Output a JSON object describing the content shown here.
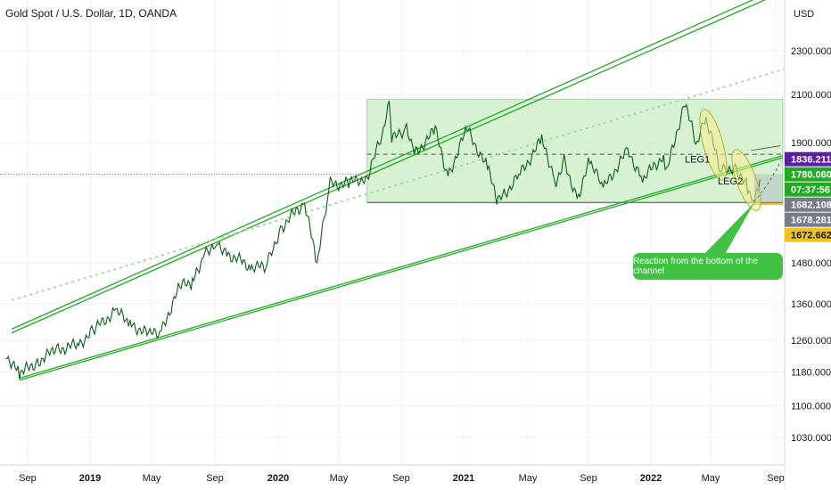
{
  "header": {
    "title": "Gold Spot / U.S. Dollar, 1D, OANDA",
    "currency": "USD"
  },
  "chart_data": {
    "type": "line",
    "y_axis": {
      "ticks": [
        "2300.000",
        "2100.000",
        "1900.000",
        "1480.000",
        "1360.000",
        "1260.000",
        "1180.000",
        "1100.000",
        "1030.000"
      ],
      "tick_values": [
        2300,
        2100,
        1900,
        1480,
        1360,
        1260,
        1180,
        1100,
        1030
      ],
      "scale": "log"
    },
    "x_axis": {
      "ticks": [
        "Sep",
        "2019",
        "May",
        "Sep",
        "2020",
        "May",
        "Sep",
        "2021",
        "May",
        "Sep",
        "2022",
        "May",
        "Sep"
      ],
      "bold": [
        false,
        true,
        false,
        false,
        true,
        false,
        false,
        true,
        false,
        false,
        true,
        false,
        false
      ]
    },
    "price_tags": [
      {
        "text": "1836.211",
        "value": 1836.211,
        "color": "#5b1fa6"
      },
      {
        "text": "1780.060",
        "value": 1780.06,
        "color": "#22ab22"
      },
      {
        "text": "07:37:56",
        "value": 1763,
        "color": "#22ab22"
      },
      {
        "text": "1682.108",
        "value": 1682.108,
        "color": "#787b86"
      },
      {
        "text": "1678.281",
        "value": 1678.281,
        "color": "#787b86"
      },
      {
        "text": "1672.662",
        "value": 1672.662,
        "color": "#f0c419"
      }
    ],
    "series": [
      {
        "values": [
          [
            "2018-07-20",
            1225
          ],
          [
            "2018-08-16",
            1175
          ],
          [
            "2018-09-20",
            1205
          ],
          [
            "2018-10-25",
            1235
          ],
          [
            "2018-12-10",
            1250
          ],
          [
            "2019-01-10",
            1290
          ],
          [
            "2019-02-20",
            1340
          ],
          [
            "2019-03-20",
            1305
          ],
          [
            "2019-04-25",
            1275
          ],
          [
            "2019-05-20",
            1282
          ],
          [
            "2019-06-25",
            1410
          ],
          [
            "2019-07-20",
            1420
          ],
          [
            "2019-08-10",
            1500
          ],
          [
            "2019-09-05",
            1550
          ],
          [
            "2019-09-25",
            1510
          ],
          [
            "2019-11-10",
            1470
          ],
          [
            "2019-12-10",
            1465
          ],
          [
            "2020-01-08",
            1590
          ],
          [
            "2020-02-24",
            1680
          ],
          [
            "2020-03-19",
            1470
          ],
          [
            "2020-04-14",
            1745
          ],
          [
            "2020-05-20",
            1745
          ],
          [
            "2020-06-25",
            1770
          ],
          [
            "2020-07-27",
            1940
          ],
          [
            "2020-08-07",
            2075
          ],
          [
            "2020-08-12",
            1910
          ],
          [
            "2020-09-10",
            1960
          ],
          [
            "2020-09-28",
            1860
          ],
          [
            "2020-11-05",
            1950
          ],
          [
            "2020-11-30",
            1770
          ],
          [
            "2021-01-06",
            1955
          ],
          [
            "2021-02-15",
            1800
          ],
          [
            "2021-03-08",
            1680
          ],
          [
            "2021-04-20",
            1780
          ],
          [
            "2021-06-01",
            1910
          ],
          [
            "2021-06-29",
            1755
          ],
          [
            "2021-07-15",
            1830
          ],
          [
            "2021-08-09",
            1690
          ],
          [
            "2021-09-03",
            1830
          ],
          [
            "2021-09-29",
            1725
          ],
          [
            "2021-11-16",
            1870
          ],
          [
            "2021-12-15",
            1760
          ],
          [
            "2022-01-25",
            1850
          ],
          [
            "2022-01-31",
            1785
          ],
          [
            "2022-03-08",
            2070
          ],
          [
            "2022-03-29",
            1890
          ],
          [
            "2022-04-18",
            1998
          ],
          [
            "2022-05-16",
            1790
          ],
          [
            "2022-06-14",
            1810
          ],
          [
            "2022-07-08",
            1730
          ],
          [
            "2022-07-21",
            1680
          ],
          [
            "2022-08-01",
            1760
          ]
        ]
      }
    ],
    "channel": {
      "upper_line_1": [
        [
          "2018-08-01",
          1290
        ],
        [
          "2022-10-10",
          2660
        ]
      ],
      "upper_line_2": [
        [
          "2018-08-01",
          1280
        ],
        [
          "2022-10-10",
          2630
        ]
      ],
      "lower_line_1": [
        [
          "2018-08-16",
          1165
        ],
        [
          "2022-09-15",
          1850
        ]
      ],
      "lower_line_2": [
        [
          "2018-08-16",
          1160
        ],
        [
          "2022-09-15",
          1842
        ]
      ],
      "mid_dotted": [
        [
          "2018-08-01",
          1370
        ],
        [
          "2022-10-10",
          2230
        ]
      ]
    },
    "range_box": {
      "x": [
        "2020-06-25",
        "2022-09-15"
      ],
      "y": [
        1678,
        2080
      ]
    },
    "dashed_level": 1855,
    "gold_level": 1672.662,
    "legs": [
      {
        "label": "LEG1"
      },
      {
        "label": "LEG2"
      }
    ],
    "annotation": "Reaction from the bottom of the channel"
  },
  "colors": {
    "green": "#22ab22",
    "box": "#c8edc4",
    "grid": "#eef0f3"
  }
}
